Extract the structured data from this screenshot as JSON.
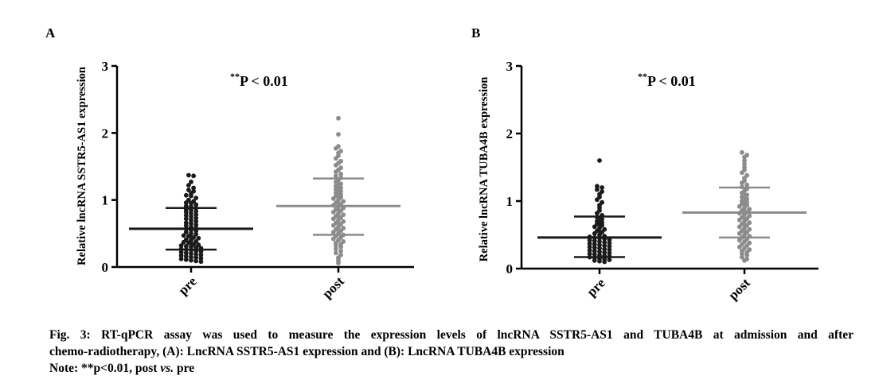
{
  "chart_data": [
    {
      "panel_label": "A",
      "type": "scatter",
      "ylabel": "Relative lncRNA SSTR5-AS1 expression",
      "ylim": [
        0,
        3
      ],
      "yticks": [
        "0",
        "1",
        "2",
        "3"
      ],
      "categories": [
        "pre",
        "post"
      ],
      "annotation": {
        "stars": "**",
        "text": "P < 0.01"
      },
      "groups": [
        {
          "name": "pre",
          "color": "#1a1a1a",
          "mean": 0.57,
          "sd_upper": 0.88,
          "sd_lower": 0.26,
          "values": [
            1.37,
            1.36,
            1.27,
            1.22,
            1.18,
            1.15,
            1.13,
            1.1,
            1.07,
            1.06,
            1.03,
            1.0,
            0.98,
            0.96,
            0.95,
            0.93,
            0.91,
            0.9,
            0.88,
            0.86,
            0.85,
            0.83,
            0.82,
            0.8,
            0.78,
            0.77,
            0.75,
            0.73,
            0.72,
            0.7,
            0.68,
            0.66,
            0.65,
            0.63,
            0.62,
            0.6,
            0.58,
            0.57,
            0.55,
            0.54,
            0.52,
            0.5,
            0.49,
            0.47,
            0.46,
            0.44,
            0.43,
            0.41,
            0.4,
            0.38,
            0.37,
            0.36,
            0.34,
            0.33,
            0.32,
            0.31,
            0.3,
            0.29,
            0.28,
            0.27,
            0.26,
            0.25,
            0.24,
            0.23,
            0.22,
            0.21,
            0.2,
            0.19,
            0.18,
            0.17,
            0.16,
            0.15,
            0.14,
            0.13,
            0.12,
            0.11,
            0.1,
            0.09,
            0.08
          ]
        },
        {
          "name": "post",
          "color": "#8c8c8c",
          "mean": 0.91,
          "sd_upper": 1.32,
          "sd_lower": 0.48,
          "values": [
            2.22,
            1.98,
            1.8,
            1.77,
            1.73,
            1.7,
            1.66,
            1.62,
            1.58,
            1.55,
            1.52,
            1.48,
            1.45,
            1.42,
            1.39,
            1.36,
            1.33,
            1.3,
            1.27,
            1.24,
            1.21,
            1.18,
            1.16,
            1.13,
            1.11,
            1.08,
            1.06,
            1.04,
            1.02,
            1.0,
            0.98,
            0.96,
            0.94,
            0.92,
            0.9,
            0.88,
            0.86,
            0.84,
            0.82,
            0.8,
            0.78,
            0.76,
            0.74,
            0.72,
            0.7,
            0.68,
            0.66,
            0.64,
            0.62,
            0.6,
            0.58,
            0.56,
            0.54,
            0.52,
            0.5,
            0.48,
            0.46,
            0.44,
            0.42,
            0.4,
            0.38,
            0.36,
            0.34,
            0.32,
            0.3,
            0.27,
            0.24,
            0.21,
            0.18,
            0.14,
            0.1,
            0.06
          ]
        }
      ]
    },
    {
      "panel_label": "B",
      "type": "scatter",
      "ylabel": "Relative lncRNA TUBA4B expression",
      "ylim": [
        0,
        3
      ],
      "yticks": [
        "0",
        "1",
        "2",
        "3"
      ],
      "categories": [
        "pre",
        "post"
      ],
      "annotation": {
        "stars": "**",
        "text": "P < 0.01"
      },
      "groups": [
        {
          "name": "pre",
          "color": "#1a1a1a",
          "mean": 0.46,
          "sd_upper": 0.77,
          "sd_lower": 0.17,
          "values": [
            1.6,
            1.22,
            1.2,
            1.17,
            1.14,
            1.1,
            1.06,
            1.02,
            0.98,
            0.94,
            0.9,
            0.86,
            0.82,
            0.79,
            0.76,
            0.73,
            0.7,
            0.68,
            0.66,
            0.64,
            0.62,
            0.6,
            0.58,
            0.56,
            0.54,
            0.52,
            0.5,
            0.48,
            0.47,
            0.46,
            0.45,
            0.44,
            0.43,
            0.42,
            0.41,
            0.4,
            0.39,
            0.38,
            0.37,
            0.36,
            0.35,
            0.34,
            0.33,
            0.32,
            0.31,
            0.3,
            0.29,
            0.28,
            0.27,
            0.26,
            0.25,
            0.24,
            0.23,
            0.22,
            0.21,
            0.2,
            0.19,
            0.18,
            0.17,
            0.16,
            0.15,
            0.14,
            0.13,
            0.12,
            0.11,
            0.1
          ]
        },
        {
          "name": "post",
          "color": "#8c8c8c",
          "mean": 0.83,
          "sd_upper": 1.2,
          "sd_lower": 0.46,
          "values": [
            1.72,
            1.68,
            1.65,
            1.6,
            1.55,
            1.5,
            1.46,
            1.42,
            1.38,
            1.34,
            1.3,
            1.27,
            1.24,
            1.21,
            1.18,
            1.15,
            1.12,
            1.09,
            1.06,
            1.03,
            1.0,
            0.98,
            0.96,
            0.94,
            0.92,
            0.9,
            0.88,
            0.86,
            0.84,
            0.82,
            0.8,
            0.78,
            0.76,
            0.74,
            0.72,
            0.7,
            0.68,
            0.66,
            0.64,
            0.62,
            0.6,
            0.58,
            0.56,
            0.54,
            0.52,
            0.5,
            0.48,
            0.46,
            0.44,
            0.42,
            0.4,
            0.38,
            0.36,
            0.34,
            0.32,
            0.3,
            0.28,
            0.26,
            0.24,
            0.22,
            0.2,
            0.17,
            0.14,
            0.12
          ]
        }
      ]
    }
  ],
  "caption": {
    "line1": "Fig. 3: RT-qPCR assay was used to measure the expression levels of lncRNA SSTR5-AS1 and TUBA4B at admission and after",
    "line2": "chemo-radiotherapy, (A): LncRNA SSTR5-AS1 expression and (B): LncRNA TUBA4B expression",
    "note_prefix": "Note: **p<0.01, post ",
    "note_italic": "vs.",
    "note_suffix": " pre"
  }
}
